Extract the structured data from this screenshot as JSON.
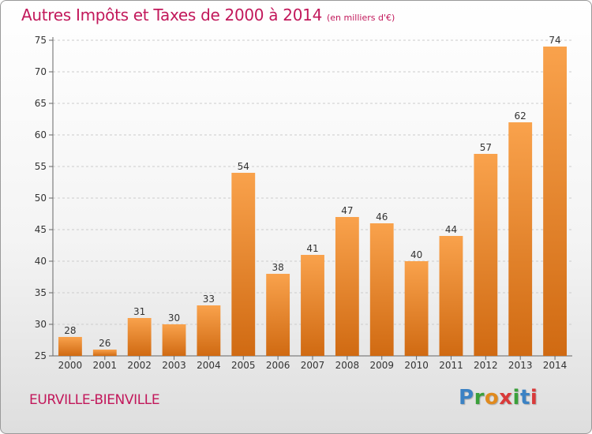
{
  "header": {
    "title": "Autres Impôts et Taxes de 2000 à 2014",
    "unit": "(en milliers d'€)"
  },
  "footer": {
    "city": "EURVILLE-BIENVILLE",
    "logo_letters": [
      "P",
      "r",
      "o",
      "x",
      "i",
      "t",
      "i"
    ],
    "logo_colors": [
      "#3b82c4",
      "#3aa03a",
      "#e08a1e",
      "#d93a3a",
      "#3aa03a",
      "#3b82c4",
      "#d93a3a"
    ]
  },
  "colors": {
    "title": "#c2185b",
    "bar_top": "#f9a24c",
    "bar_bottom": "#d06a12",
    "grid": "#cccccc"
  },
  "chart_data": {
    "type": "bar",
    "title": "Autres Impôts et Taxes de 2000 à 2014",
    "subtitle": "(en milliers d'€)",
    "categories": [
      "2000",
      "2001",
      "2002",
      "2003",
      "2004",
      "2005",
      "2006",
      "2007",
      "2008",
      "2009",
      "2010",
      "2011",
      "2012",
      "2013",
      "2014"
    ],
    "values": [
      28,
      26,
      31,
      30,
      33,
      54,
      38,
      41,
      47,
      46,
      40,
      44,
      57,
      62,
      74
    ],
    "yticks": [
      25,
      30,
      35,
      40,
      45,
      50,
      55,
      60,
      65,
      70,
      75
    ],
    "ylim": [
      25,
      75
    ],
    "grid": "horizontal dashed",
    "legend": "none",
    "xlabel": "",
    "ylabel": ""
  }
}
